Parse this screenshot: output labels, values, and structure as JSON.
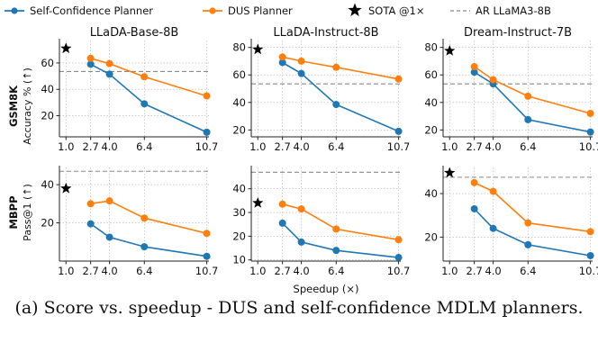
{
  "legend": {
    "items": [
      {
        "name": "Self-Confidence Planner",
        "kind": "line-marker",
        "color": "#1f77b4"
      },
      {
        "name": "DUS Planner",
        "kind": "line-marker",
        "color": "#ff7f0e"
      },
      {
        "name": "SOTA @1×",
        "kind": "star",
        "color": "#000000"
      },
      {
        "name": "AR LLaMA3-8B",
        "kind": "dashed",
        "color": "#888888"
      }
    ]
  },
  "caption": "(a) Score vs. speedup - DUS and self-confidence MDLM planners.",
  "xlabel": "Speedup (×)",
  "row_labels": [
    {
      "bold": "GSM8K",
      "sub": "Accuracy % (↑)"
    },
    {
      "bold": "MBPP",
      "sub": "Pass@1 (↑)"
    }
  ],
  "chart_data": [
    {
      "type": "line",
      "title": "LLaDA-Base-8B",
      "row": "GSM8K",
      "x": [
        2.7,
        4.0,
        6.4,
        10.7
      ],
      "xticks": [
        "1.0",
        "2.7",
        "4.0",
        "6.4",
        "10.7"
      ],
      "ylim": [
        4,
        77
      ],
      "yticks": [
        20,
        40,
        60
      ],
      "grid": true,
      "series": [
        {
          "name": "Self-Confidence Planner",
          "values": [
            59,
            51.5,
            29,
            7.5
          ]
        },
        {
          "name": "DUS Planner",
          "values": [
            63.5,
            59.5,
            49.5,
            35
          ]
        }
      ],
      "sota": {
        "x": 1.0,
        "y": 71
      },
      "ar_baseline": 53.5
    },
    {
      "type": "line",
      "title": "LLaDA-Instruct-8B",
      "row": "GSM8K",
      "x": [
        2.7,
        4.0,
        6.4,
        10.7
      ],
      "xticks": [
        "1.0",
        "2.7",
        "4.0",
        "6.4",
        "10.7"
      ],
      "ylim": [
        15,
        85
      ],
      "yticks": [
        20,
        40,
        60,
        80
      ],
      "grid": true,
      "series": [
        {
          "name": "Self-Confidence Planner",
          "values": [
            69,
            61,
            38.5,
            19
          ]
        },
        {
          "name": "DUS Planner",
          "values": [
            73,
            70,
            65.5,
            57
          ]
        }
      ],
      "sota": {
        "x": 1.0,
        "y": 78.5
      },
      "ar_baseline": 53.5
    },
    {
      "type": "line",
      "title": "Dream-Instruct-7B",
      "row": "GSM8K",
      "x": [
        2.7,
        4.0,
        6.4,
        10.7
      ],
      "xticks": [
        "1.0",
        "2.7",
        "4.0",
        "6.4",
        "10.7"
      ],
      "ylim": [
        15,
        85
      ],
      "yticks": [
        20,
        40,
        60,
        80
      ],
      "grid": true,
      "series": [
        {
          "name": "Self-Confidence Planner",
          "values": [
            62,
            53.5,
            27.5,
            18.5
          ]
        },
        {
          "name": "DUS Planner",
          "values": [
            66,
            56.5,
            44.5,
            32
          ]
        }
      ],
      "sota": {
        "x": 1.0,
        "y": 77.5
      },
      "ar_baseline": 53.5
    },
    {
      "type": "line",
      "title": "",
      "row": "MBPP",
      "x": [
        2.7,
        4.0,
        6.4,
        10.7
      ],
      "xticks": [
        "1.0",
        "2.7",
        "4.0",
        "6.4",
        "10.7"
      ],
      "ylim": [
        0,
        49
      ],
      "yticks": [
        20,
        40
      ],
      "grid": true,
      "series": [
        {
          "name": "Self-Confidence Planner",
          "values": [
            19.5,
            12.5,
            7.5,
            2.5
          ]
        },
        {
          "name": "DUS Planner",
          "values": [
            30,
            31.5,
            22.5,
            14.5
          ]
        }
      ],
      "sota": {
        "x": 1.0,
        "y": 38
      },
      "ar_baseline": 47
    },
    {
      "type": "line",
      "title": "",
      "row": "MBPP",
      "x": [
        2.7,
        4.0,
        6.4,
        10.7
      ],
      "xticks": [
        "1.0",
        "2.7",
        "4.0",
        "6.4",
        "10.7"
      ],
      "ylim": [
        9.5,
        49
      ],
      "yticks": [
        10,
        20,
        30,
        40
      ],
      "grid": true,
      "series": [
        {
          "name": "Self-Confidence Planner",
          "values": [
            25.5,
            17.5,
            14,
            11
          ]
        },
        {
          "name": "DUS Planner",
          "values": [
            33.5,
            31.5,
            23,
            18.5
          ]
        }
      ],
      "sota": {
        "x": 1.0,
        "y": 34
      },
      "ar_baseline": 47
    },
    {
      "type": "line",
      "title": "",
      "row": "MBPP",
      "x": [
        2.7,
        4.0,
        6.4,
        10.7
      ],
      "xticks": [
        "1.0",
        "2.7",
        "4.0",
        "6.4",
        "10.7"
      ],
      "ylim": [
        9,
        52
      ],
      "yticks": [
        20,
        40
      ],
      "grid": true,
      "series": [
        {
          "name": "Self-Confidence Planner",
          "values": [
            33,
            24,
            16.5,
            11.5
          ]
        },
        {
          "name": "DUS Planner",
          "values": [
            45,
            41,
            26.5,
            22.5
          ]
        }
      ],
      "sota": {
        "x": 1.0,
        "y": 49.5
      },
      "ar_baseline": 47.5
    }
  ]
}
